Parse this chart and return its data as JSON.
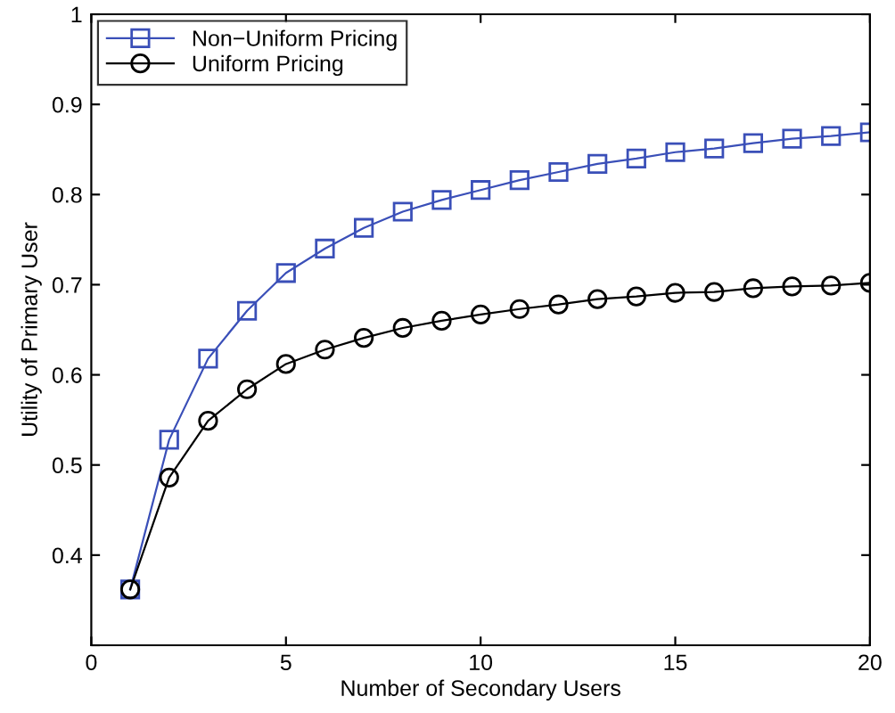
{
  "chart_data": {
    "type": "line",
    "xlabel": "Number of Secondary Users",
    "ylabel": "Utility of Primary User",
    "x": [
      1,
      2,
      3,
      4,
      5,
      6,
      7,
      8,
      9,
      10,
      11,
      12,
      13,
      14,
      15,
      16,
      17,
      18,
      19,
      20
    ],
    "series": [
      {
        "name": "Non−Uniform Pricing",
        "color": "#3a4fb8",
        "marker": "square",
        "values": [
          0.362,
          0.528,
          0.618,
          0.671,
          0.713,
          0.74,
          0.763,
          0.781,
          0.794,
          0.805,
          0.816,
          0.825,
          0.834,
          0.84,
          0.847,
          0.851,
          0.857,
          0.862,
          0.865,
          0.869
        ]
      },
      {
        "name": "Uniform Pricing",
        "color": "#000000",
        "marker": "circle",
        "values": [
          0.362,
          0.486,
          0.549,
          0.584,
          0.612,
          0.628,
          0.641,
          0.652,
          0.66,
          0.667,
          0.673,
          0.678,
          0.684,
          0.687,
          0.691,
          0.692,
          0.696,
          0.698,
          0.699,
          0.702
        ]
      }
    ],
    "xlim": [
      0,
      20
    ],
    "xticks": [
      0,
      5,
      10,
      15,
      20
    ],
    "ylim": [
      0.3,
      1
    ],
    "yticks": [
      {
        "value": 0.3,
        "label": null
      },
      0.4,
      0.5,
      0.6,
      0.7,
      0.8,
      0.9,
      1
    ],
    "grid": false,
    "legend": "top left",
    "line_style": "solid"
  }
}
